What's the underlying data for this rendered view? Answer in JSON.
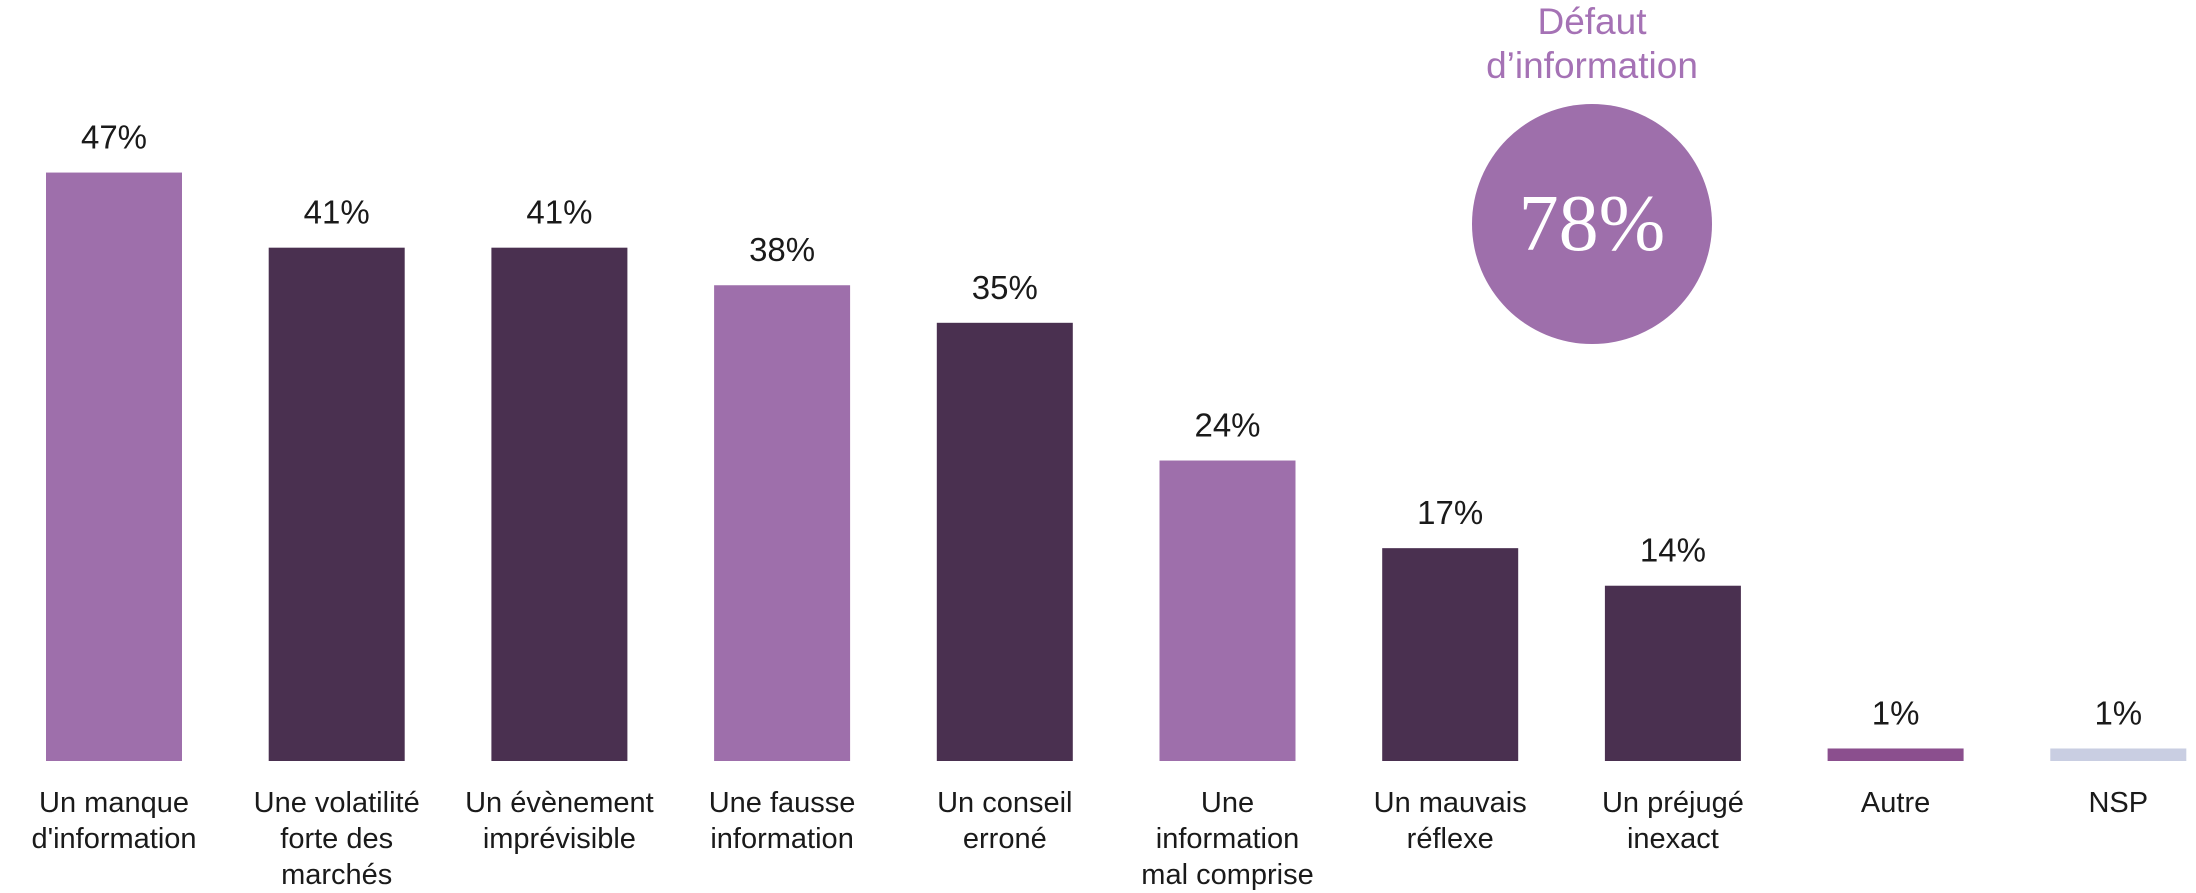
{
  "chart_data": {
    "type": "bar",
    "categories": [
      "Un manque\nd'information",
      "Une volatilité\nforte des\nmarchés",
      "Un évènement\nimprévisible",
      "Une fausse\ninformation",
      "Un conseil\nerroné",
      "Une\ninformation\nmal comprise",
      "Un mauvais\nréflexe",
      "Un préjugé\ninexact",
      "Autre",
      "NSP"
    ],
    "values": [
      47,
      41,
      41,
      38,
      35,
      24,
      17,
      14,
      1,
      1
    ],
    "value_labels": [
      "47%",
      "41%",
      "41%",
      "38%",
      "35%",
      "24%",
      "17%",
      "14%",
      "1%",
      "1%"
    ],
    "colors": [
      "#9e6fab",
      "#4a3050",
      "#4a3050",
      "#9e6fab",
      "#4a3050",
      "#9e6fab",
      "#4a3050",
      "#4a3050",
      "#8b4f8e",
      "#c9cee2"
    ],
    "highlight": {
      "title_lines": [
        "Défaut",
        "d’information"
      ],
      "value": 78,
      "value_label": "78%",
      "color": "#9e6fab"
    }
  }
}
